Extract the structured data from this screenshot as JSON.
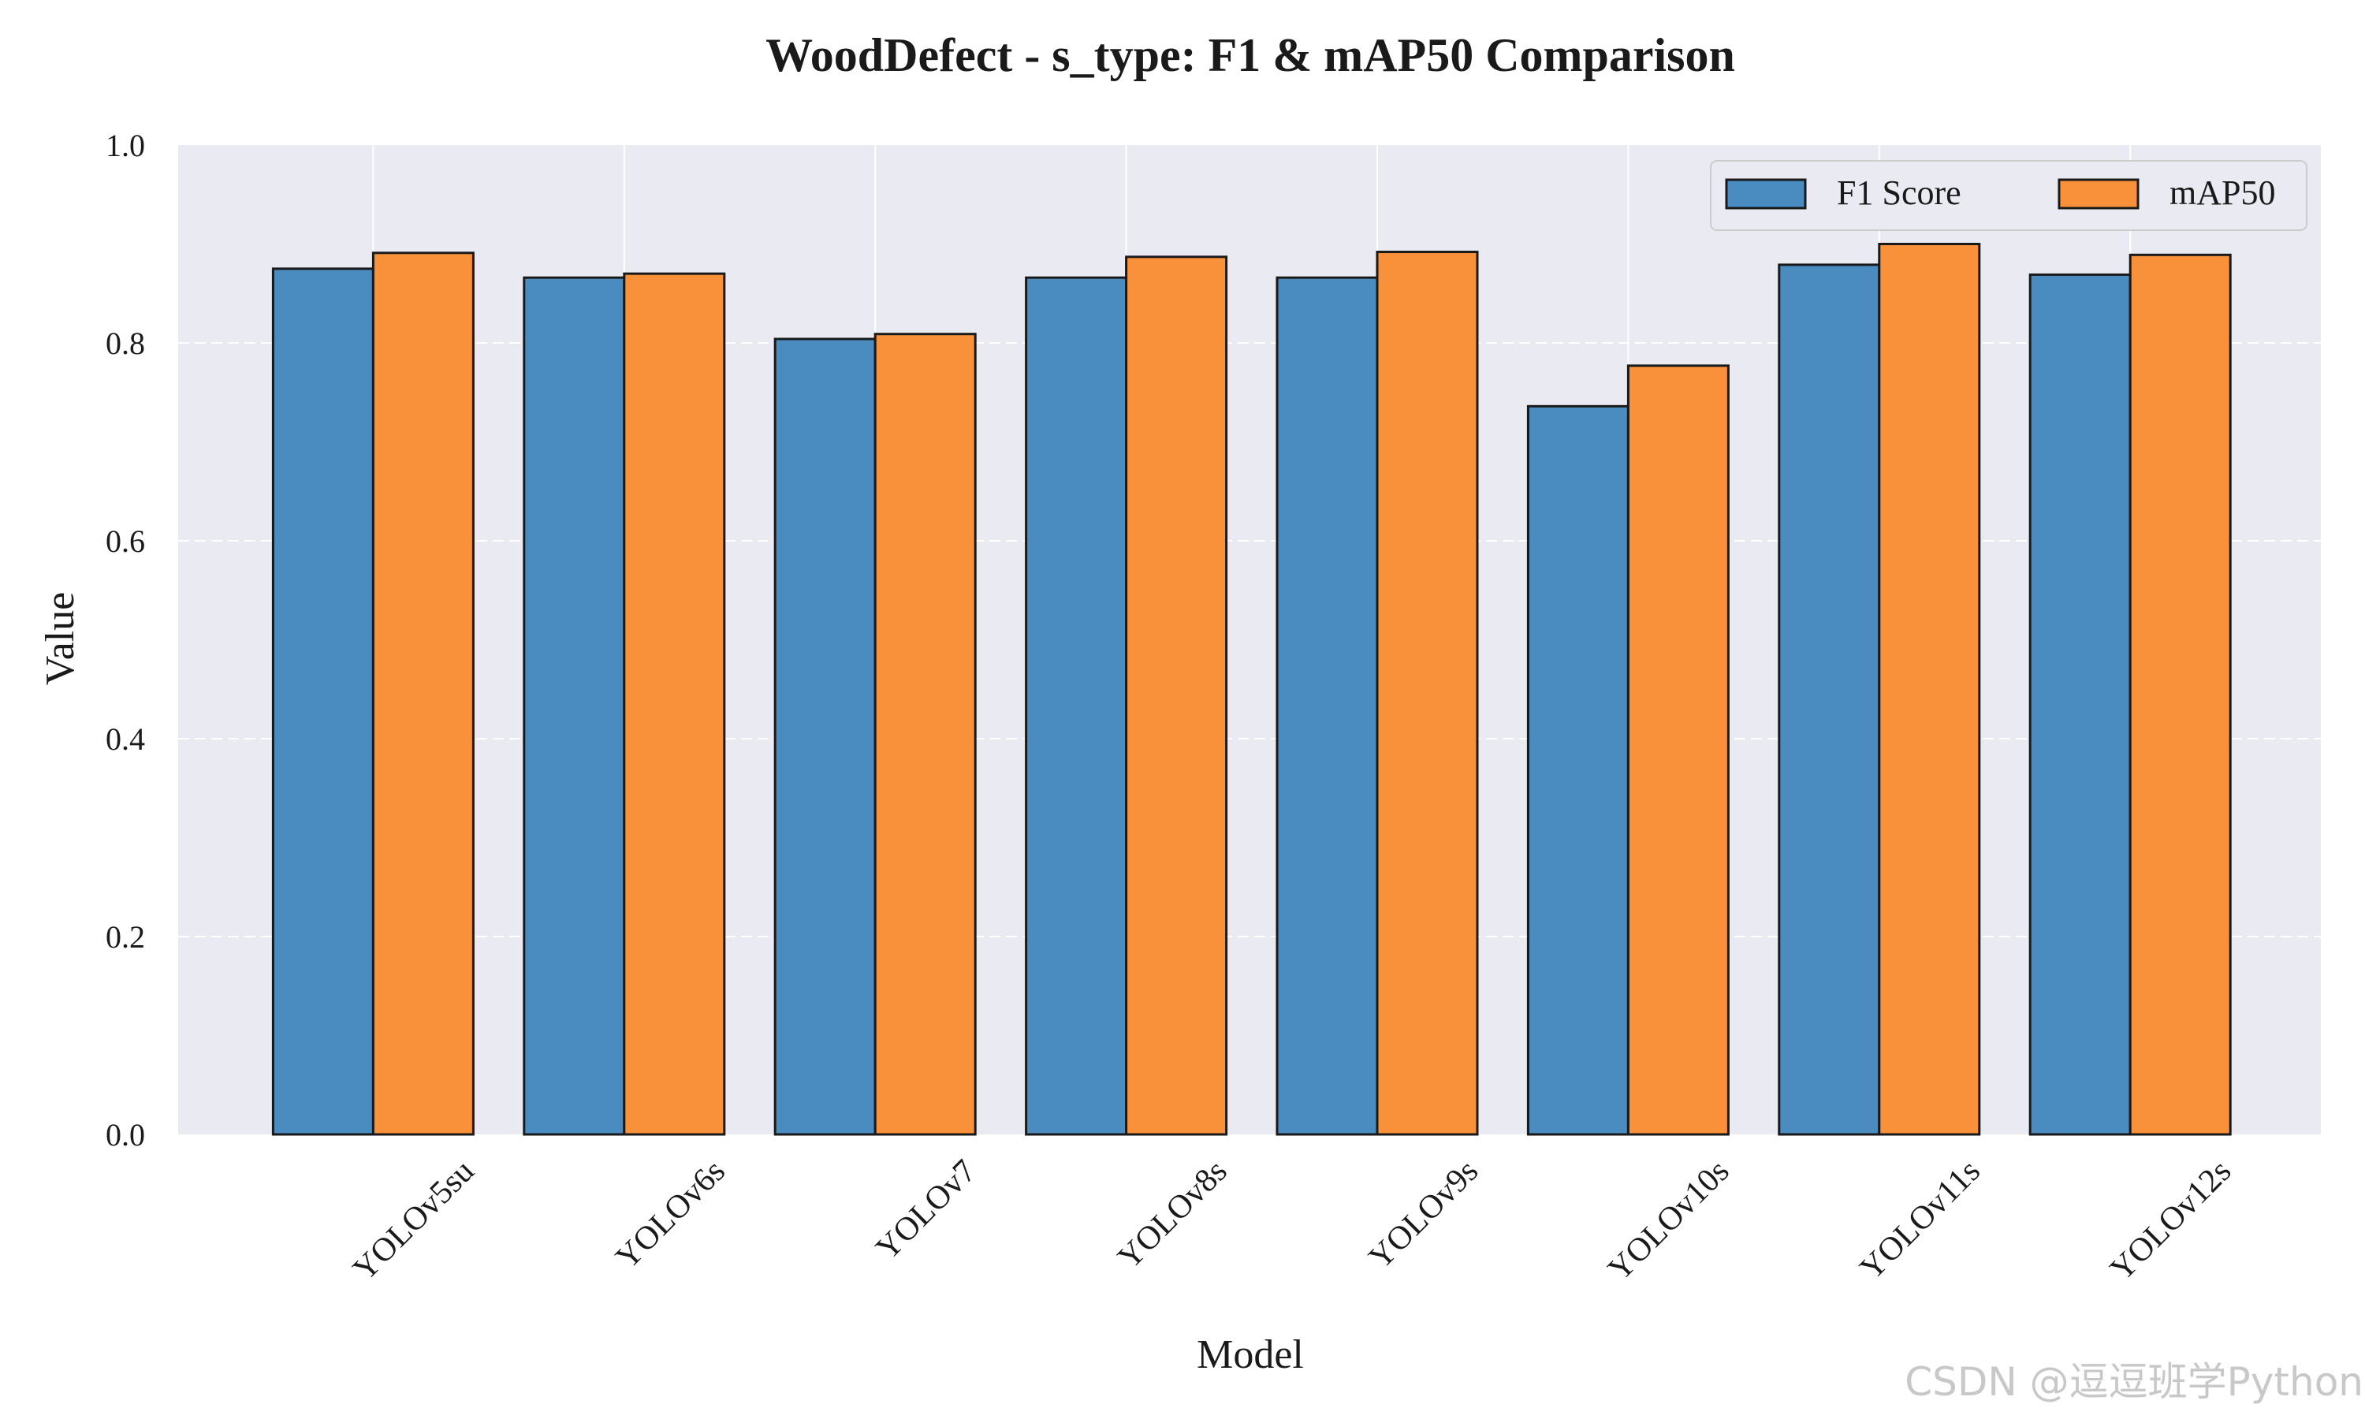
{
  "watermark": "CSDN @逗逗班学Python",
  "colors": {
    "background": "#ffffff",
    "plot_bg": "#eaeaf2",
    "grid": "#ffffff",
    "bar_edge": "#1a1a1a",
    "f1": "#4a8cc0",
    "map50": "#f9913a",
    "text": "#1a1a1a"
  },
  "chart_data": {
    "type": "bar",
    "title": "WoodDefect - s_type: F1 & mAP50 Comparison",
    "xlabel": "Model",
    "ylabel": "Value",
    "ylim": [
      0,
      1.0
    ],
    "yticks": [
      "0.0",
      "0.2",
      "0.4",
      "0.6",
      "0.8",
      "1.0"
    ],
    "categories": [
      "YOLOv5su",
      "YOLOv6s",
      "YOLOv7",
      "YOLOv8s",
      "YOLOv9s",
      "YOLOv10s",
      "YOLOv11s",
      "YOLOv12s"
    ],
    "series": [
      {
        "name": "F1 Score",
        "color": "#4a8cc0",
        "values": [
          0.875,
          0.866,
          0.804,
          0.866,
          0.866,
          0.736,
          0.879,
          0.869
        ]
      },
      {
        "name": "mAP50",
        "color": "#f9913a",
        "values": [
          0.891,
          0.87,
          0.809,
          0.887,
          0.892,
          0.777,
          0.9,
          0.889
        ]
      }
    ],
    "grid": {
      "y": "dashed",
      "x": "solid"
    },
    "legend_position": "top-right",
    "legend_columns": 2,
    "tick_label_rotation": 45
  }
}
